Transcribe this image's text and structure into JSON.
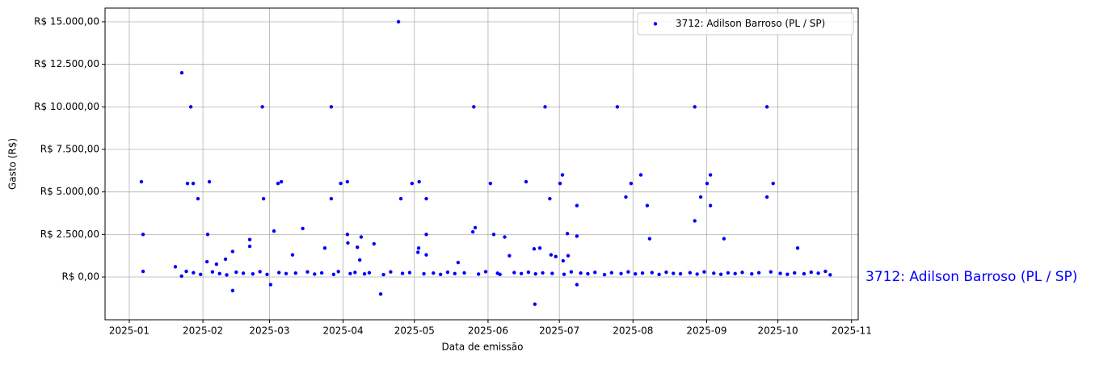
{
  "chart_data": {
    "type": "scatter",
    "xlabel": "Data de emissão",
    "ylabel": "Gasto (R$)",
    "annotation": "3712: Adilson Barroso (PL / SP)",
    "grid": true,
    "legend": "upper right",
    "xlim": [
      -10.2,
      306.8
    ],
    "xticks": [
      {
        "value": 0,
        "label": "2025-01"
      },
      {
        "value": 31,
        "label": "2025-02"
      },
      {
        "value": 59,
        "label": "2025-03"
      },
      {
        "value": 90,
        "label": "2025-04"
      },
      {
        "value": 120,
        "label": "2025-05"
      },
      {
        "value": 151,
        "label": "2025-06"
      },
      {
        "value": 181,
        "label": "2025-07"
      },
      {
        "value": 212,
        "label": "2025-08"
      },
      {
        "value": 243,
        "label": "2025-09"
      },
      {
        "value": 273,
        "label": "2025-10"
      },
      {
        "value": 304,
        "label": "2025-11"
      }
    ],
    "ylim": [
      -2515,
      15807
    ],
    "yticks": [
      {
        "value": 0,
        "label": "R$ 0,00"
      },
      {
        "value": 2500,
        "label": "R$ 2.500,00"
      },
      {
        "value": 5000,
        "label": "R$ 5.000,00"
      },
      {
        "value": 7500,
        "label": "R$ 7.500,00"
      },
      {
        "value": 10000,
        "label": "R$ 10.000,00"
      },
      {
        "value": 12500,
        "label": "R$ 12.500,00"
      },
      {
        "value": 15000,
        "label": "R$ 15.000,00"
      }
    ],
    "series": [
      {
        "name": "3712: Adilson Barroso (PL / SP)",
        "color": "#0000ff",
        "x": [
          5.1,
          5.8,
          5.8,
          19.4,
          22.1,
          22,
          24,
          24.5,
          25.9,
          26.9,
          28.9,
          33,
          33.7,
          32.7,
          36.7,
          40.5,
          43.5,
          43.5,
          50.7,
          50.7,
          56.5,
          56,
          59.5,
          60.9,
          62.6,
          64,
          68.7,
          73,
          82.3,
          85,
          85,
          89,
          91.8,
          91.8,
          92,
          96,
          97.6,
          97,
          103,
          105.8,
          113.3,
          114.3,
          119,
          122,
          121.8,
          121.5,
          125,
          125,
          125,
          138.4,
          145,
          145.6,
          144.6,
          152,
          153.4,
          158,
          160,
          167,
          170.7,
          170.4,
          172.8,
          175,
          177,
          177.5,
          179.5,
          181.3,
          182.3,
          182.6,
          184.4,
          184.7,
          188.4,
          188.4,
          188.4,
          205.4,
          209,
          211.2,
          215.3,
          218,
          219,
          238,
          238,
          240.5,
          243.2,
          244.6,
          244.6,
          250.3,
          268.4,
          268.4,
          271,
          281.3,
          27,
          30,
          35,
          38,
          41,
          45,
          48,
          52,
          55,
          58,
          63,
          66,
          70,
          75,
          78,
          81,
          86,
          88,
          93,
          95,
          99,
          101,
          107,
          110,
          115,
          118,
          124,
          128,
          131,
          134,
          137,
          141,
          147,
          150,
          155,
          156,
          162,
          165,
          168,
          171,
          174,
          178,
          183,
          186,
          190,
          193,
          196,
          200,
          203,
          207,
          210,
          213,
          216,
          220,
          223,
          226,
          229,
          232,
          236,
          239,
          242,
          246,
          249,
          252,
          255,
          258,
          262,
          265,
          270,
          274,
          277,
          280,
          284,
          287,
          290,
          293,
          295
        ],
        "values": [
          5600,
          2500,
          330,
          600,
          12000,
          50,
          330,
          5500,
          10000,
          5500,
          4600,
          2500,
          5600,
          900,
          750,
          1050,
          1500,
          -800,
          2200,
          1800,
          4600,
          10000,
          -450,
          2700,
          5500,
          5600,
          1300,
          2850,
          1700,
          10000,
          4600,
          5500,
          5600,
          2500,
          2000,
          1750,
          2350,
          1000,
          1950,
          -1000,
          15000,
          4600,
          5500,
          5600,
          1700,
          1450,
          4600,
          2500,
          1300,
          850,
          10000,
          2900,
          2650,
          5500,
          2500,
          2350,
          1250,
          5600,
          -1600,
          1650,
          1700,
          10000,
          4600,
          1300,
          1200,
          5500,
          6000,
          950,
          2550,
          1250,
          4200,
          2400,
          -450,
          10000,
          4700,
          5500,
          6000,
          4200,
          2250,
          10000,
          3300,
          4700,
          5500,
          6000,
          4200,
          2250,
          10000,
          4700,
          5500,
          1700,
          250,
          150,
          300,
          200,
          120,
          280,
          220,
          180,
          310,
          150,
          260,
          200,
          230,
          300,
          170,
          240,
          150,
          320,
          200,
          270,
          180,
          250,
          140,
          300,
          210,
          260,
          190,
          230,
          150,
          280,
          200,
          240,
          170,
          310,
          220,
          150,
          260,
          200,
          280,
          180,
          240,
          210,
          160,
          300,
          230,
          190,
          270,
          140,
          250,
          200,
          300,
          180,
          230,
          260,
          150,
          280,
          210,
          190,
          250,
          170,
          300,
          220,
          160,
          240,
          200,
          270,
          180,
          250,
          300,
          210,
          160,
          240,
          190,
          280,
          220,
          330,
          130
        ]
      }
    ]
  }
}
